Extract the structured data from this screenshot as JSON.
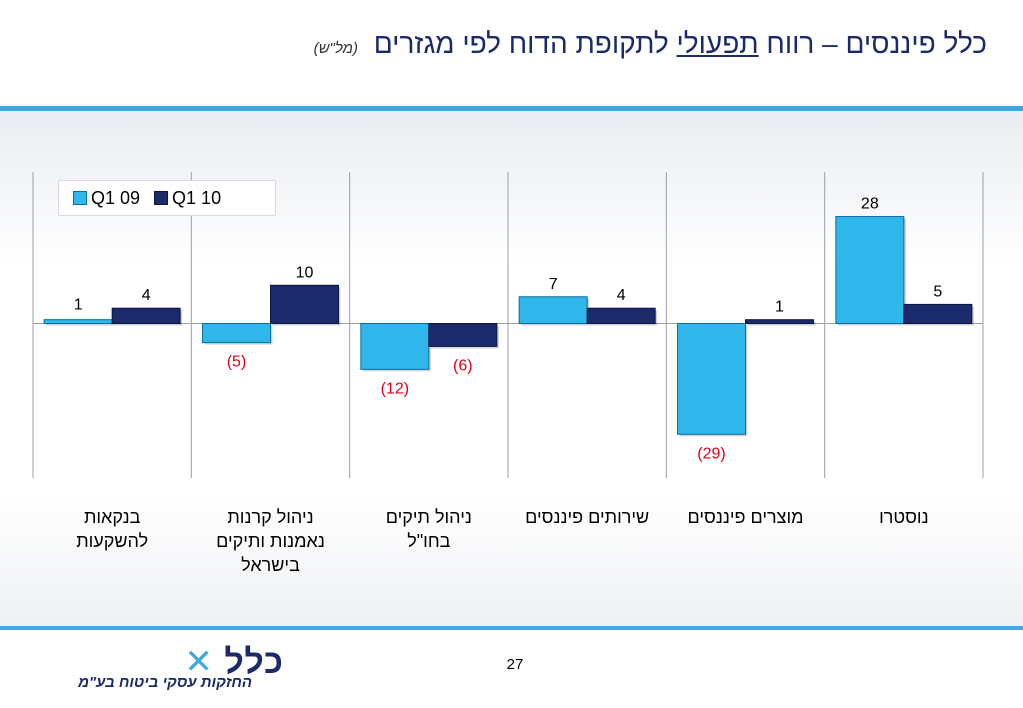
{
  "slide": {
    "title_prefix": "כלל פיננסים – רווח",
    "title_emphasis": "תפעולי",
    "title_suffix": "לתקופת הדוח לפי מגזרים",
    "title_unit": "(מל\"ש)",
    "page_number": "27"
  },
  "logo": {
    "wordmark": "כלל",
    "tagline": "החזקות עסקי ביטוח בע\"מ"
  },
  "colors": {
    "q1_09": "#2fb6ea",
    "q1_10": "#1b2a6b",
    "negative_label": "#e0001b",
    "accent_rule": "#3fa9e0"
  },
  "chart_data": {
    "type": "bar",
    "title": "",
    "xlabel": "",
    "ylabel": "",
    "ylim": [
      -35,
      35
    ],
    "grid": "vertical category separators",
    "legend": "top-left",
    "categories": [
      [
        "בנקאות",
        "להשקעות"
      ],
      [
        "ניהול קרנות",
        "נאמנות ותיקים",
        "בישראל"
      ],
      [
        "ניהול תיקים",
        "בחו\"ל"
      ],
      [
        "שירותים פיננסים"
      ],
      [
        "מוצרים פיננסים"
      ],
      [
        "נוסטרו"
      ]
    ],
    "series": [
      {
        "name": "Q1 09",
        "values": [
          1,
          -5,
          -12,
          7,
          -29,
          28
        ],
        "labels": [
          "1",
          "(5)",
          "(12)",
          "7",
          "(29)",
          "28"
        ]
      },
      {
        "name": "Q1 10",
        "values": [
          4,
          10,
          -6,
          4,
          1,
          5
        ],
        "labels": [
          "4",
          "10",
          "(6)",
          "4",
          "1",
          "5"
        ]
      }
    ]
  }
}
